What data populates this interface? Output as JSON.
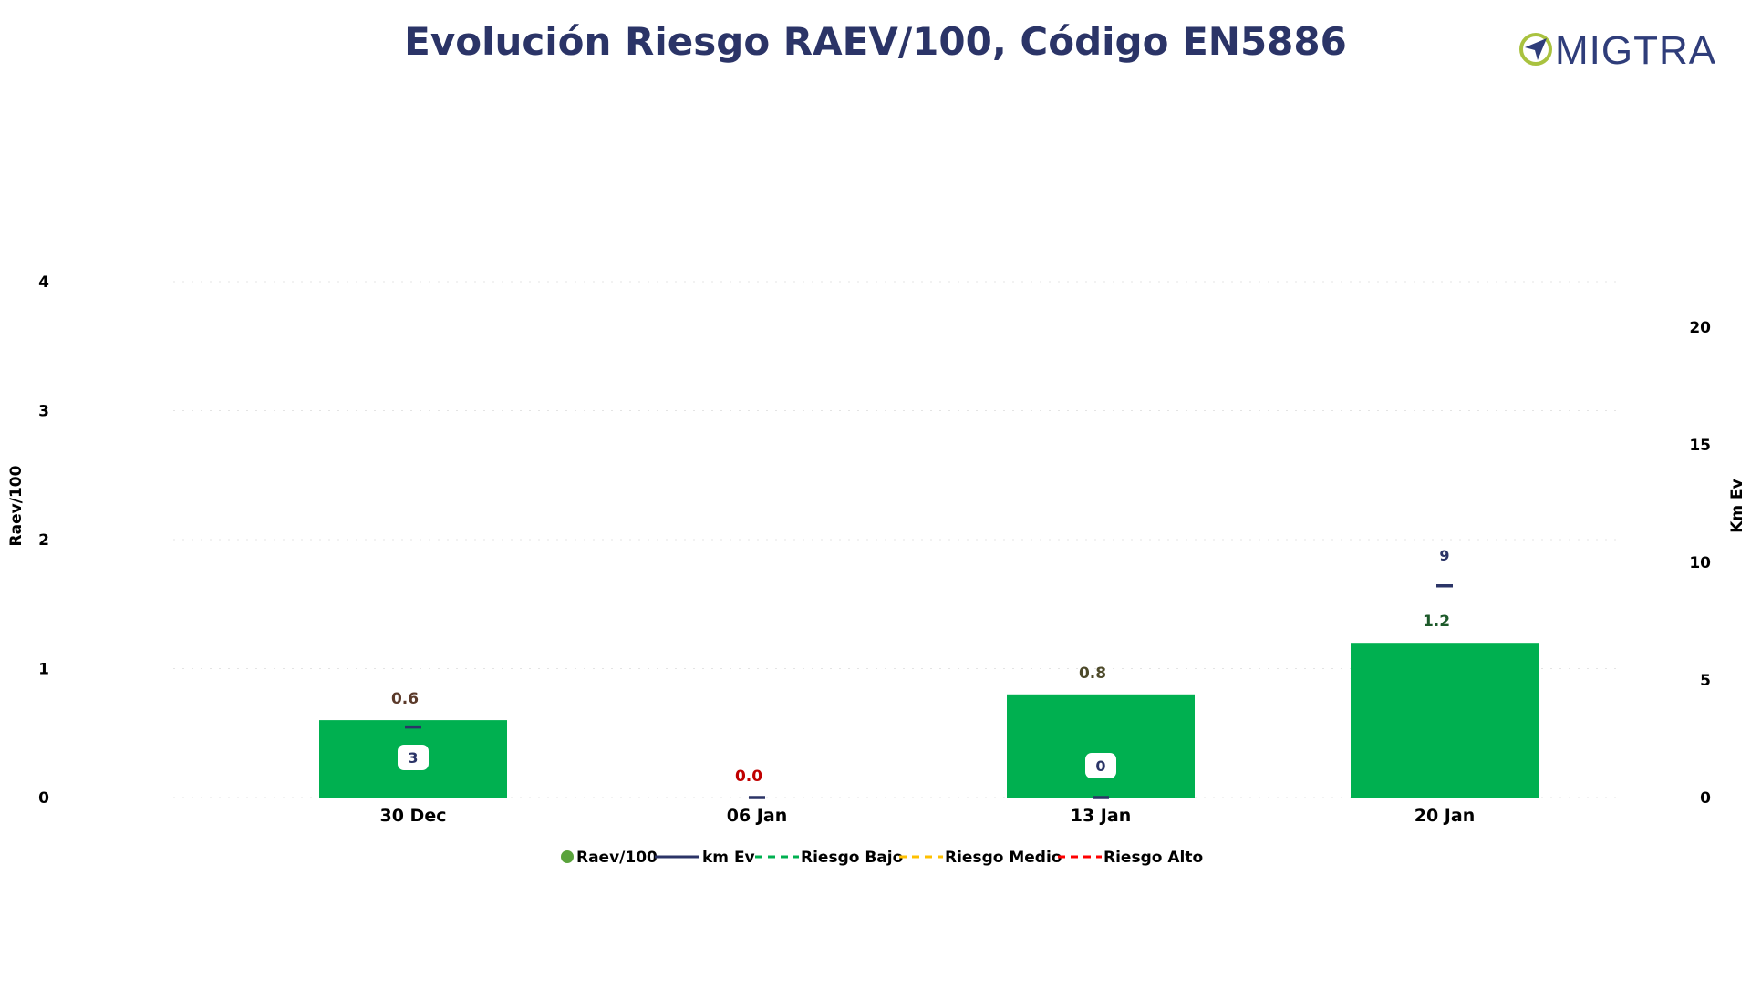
{
  "title": "Evolución Riesgo RAEV/100, Código EN5886",
  "logo": {
    "text": "MIGTRA",
    "icon": "compass-o-icon",
    "color_text": "#2f3d7a",
    "color_ring": "#a9c23f"
  },
  "colors": {
    "title": "#2b3467",
    "bar": "#00b050",
    "km_line": "#2b3467",
    "riesgo_bajo": "#00b050",
    "riesgo_medio": "#ffc000",
    "riesgo_alto": "#ff0000",
    "legend_raev_dot": "#5aa33c",
    "label_brown": "#5b3a2a",
    "label_red": "#c00000",
    "label_darkgreen": "#1d5a2a",
    "label_olive": "#4d4a2a"
  },
  "chart_data": {
    "type": "bar",
    "categories": [
      "30 Dec",
      "06 Jan",
      "13 Jan",
      "20 Jan"
    ],
    "series": [
      {
        "name": "Raev/100",
        "type": "bar",
        "axis": "left",
        "values": [
          0.6,
          0.0,
          0.8,
          1.2
        ],
        "labels": [
          "0.6",
          "0.0",
          "0.8",
          "1.2"
        ],
        "label_colors": [
          "#5b3a2a",
          "#c00000",
          "#4d4a2a",
          "#1d5a2a"
        ]
      },
      {
        "name": "km Ev",
        "type": "line",
        "axis": "right",
        "values": [
          3,
          0,
          0,
          9
        ],
        "labels": [
          "3",
          "",
          "0",
          "9"
        ]
      }
    ],
    "reference_lines": [
      {
        "name": "Riesgo Bajo",
        "style": "dashed"
      },
      {
        "name": "Riesgo Medio",
        "style": "dashed"
      },
      {
        "name": "Riesgo Alto",
        "style": "dashed"
      }
    ],
    "ylabel": "Raev/100",
    "y2label": "Km Ev",
    "ylim": [
      0,
      4
    ],
    "yticks": [
      "0",
      "1",
      "2",
      "3",
      "4"
    ],
    "y2lim": [
      0,
      22
    ],
    "y2ticks": [
      "0",
      "5",
      "10",
      "15",
      "20"
    ],
    "grid": true,
    "legend": "bottom-center"
  }
}
